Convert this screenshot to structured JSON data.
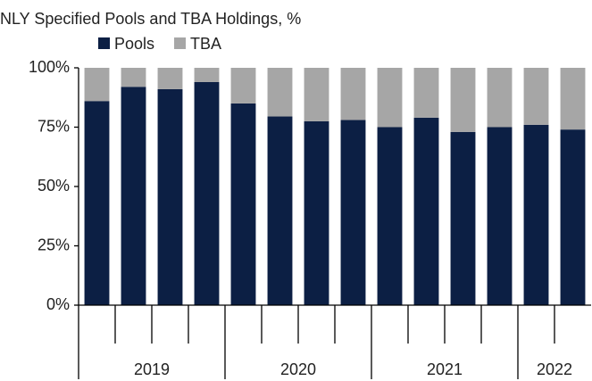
{
  "chart_data": {
    "type": "stacked_bar",
    "title": "NLY Specified Pools and TBA Holdings, %",
    "categories": [
      null,
      null,
      null,
      null,
      null,
      null,
      null,
      null,
      null,
      null,
      null,
      null,
      null,
      null
    ],
    "x_groups": [
      {
        "label": "2019",
        "count": 4
      },
      {
        "label": "2020",
        "count": 4
      },
      {
        "label": "2021",
        "count": 4
      },
      {
        "label": "2022",
        "count": 2
      }
    ],
    "series": [
      {
        "name": "Pools",
        "color": "#0c1f44",
        "values": [
          86,
          92,
          91,
          94,
          85,
          79.5,
          77.5,
          78,
          75,
          79,
          73,
          75,
          76,
          74
        ]
      },
      {
        "name": "TBA",
        "color": "#a6a6a6",
        "values": [
          14,
          8,
          9,
          6,
          15,
          20.5,
          22.5,
          22,
          25,
          21,
          27,
          25,
          24,
          26
        ]
      }
    ],
    "ylim": [
      0,
      100
    ],
    "yticks": [
      {
        "value": 0,
        "label": "0%"
      },
      {
        "value": 25,
        "label": "25%"
      },
      {
        "value": 50,
        "label": "50%"
      },
      {
        "value": 75,
        "label": "75%"
      },
      {
        "value": 100,
        "label": "100%"
      }
    ],
    "grid": false,
    "legend": "top-left"
  }
}
